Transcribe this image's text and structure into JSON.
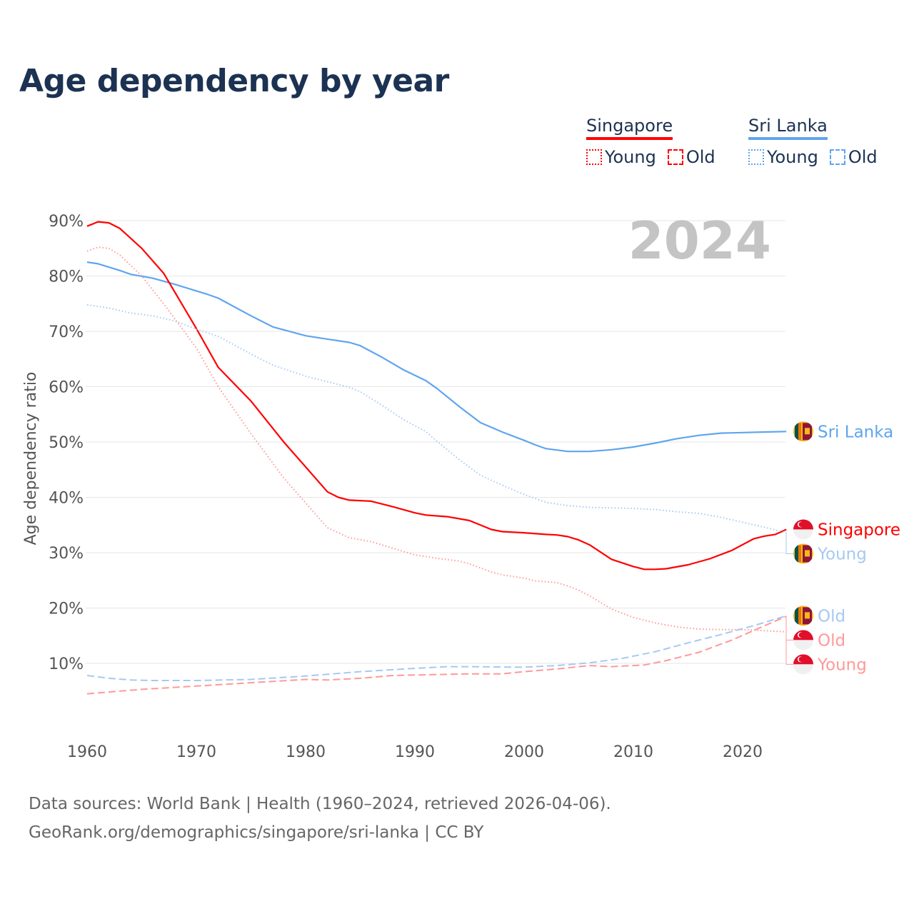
{
  "title": "Age dependency by year",
  "legend": [
    {
      "country": "Singapore",
      "color": "#ff0000",
      "light": "#ff9999",
      "young": "Young",
      "old": "Old"
    },
    {
      "country": "Sri Lanka",
      "color": "#5fa5ee",
      "light": "#a6c9f2",
      "young": "Young",
      "old": "Old"
    }
  ],
  "year_overlay": "2024",
  "footer": {
    "line1": "Data sources: World Bank | Health (1960–2024, retrieved 2026-04-06).",
    "line2": "GeoRank.org/demographics/singapore/sri-lanka | CC BY"
  },
  "chart_data": {
    "type": "line",
    "title": "Age dependency by year",
    "xlabel": "",
    "ylabel": "Age dependency ratio",
    "xlim": [
      1960,
      2024
    ],
    "ylim": [
      0,
      90
    ],
    "xticks": [
      "1960",
      "1970",
      "1980",
      "1990",
      "2000",
      "2010",
      "2020"
    ],
    "yticks": [
      "10%",
      "20%",
      "30%",
      "40%",
      "50%",
      "60%",
      "70%",
      "80%",
      "90%"
    ],
    "grid": true,
    "series": [
      {
        "name": "Sri Lanka",
        "end_label": "Sri Lanka",
        "flag": "sri-lanka",
        "style": "solid",
        "color": "#5fa5ee",
        "x": [
          1960,
          1961,
          1963,
          1964,
          1966,
          1968,
          1970,
          1971,
          1972,
          1975,
          1977,
          1980,
          1982,
          1984,
          1985,
          1987,
          1989,
          1991,
          1992,
          1994,
          1996,
          1998,
          2000,
          2001,
          2002,
          2004,
          2006,
          2008,
          2010,
          2012,
          2014,
          2016,
          2018,
          2020,
          2022,
          2024
        ],
        "y": [
          82.5,
          82.2,
          81,
          80.3,
          79.6,
          78.5,
          77.3,
          76.7,
          76,
          72.8,
          70.8,
          69.2,
          68.6,
          68,
          67.4,
          65.3,
          63,
          61.1,
          59.7,
          56.5,
          53.5,
          51.8,
          50.3,
          49.5,
          48.8,
          48.3,
          48.3,
          48.6,
          49.1,
          49.8,
          50.6,
          51.2,
          51.6,
          51.7,
          51.8,
          51.9
        ]
      },
      {
        "name": "Singapore",
        "end_label": "Singapore",
        "flag": "singapore",
        "style": "solid",
        "color": "#ff0000",
        "x": [
          1960,
          1961,
          1962,
          1963,
          1965,
          1967,
          1970,
          1972,
          1975,
          1978,
          1980,
          1982,
          1983,
          1984,
          1986,
          1988,
          1990,
          1991,
          1993,
          1995,
          1997,
          1998,
          2000,
          2002,
          2003,
          2004,
          2005,
          2006,
          2008,
          2010,
          2011,
          2012,
          2013,
          2015,
          2017,
          2019,
          2021,
          2022,
          2023,
          2024
        ],
        "y": [
          89,
          89.8,
          89.6,
          88.6,
          85,
          80.5,
          70.5,
          63.5,
          57.4,
          50,
          45.5,
          41,
          40,
          39.5,
          39.3,
          38.3,
          37.2,
          36.8,
          36.5,
          35.8,
          34.2,
          33.8,
          33.6,
          33.3,
          33.2,
          32.9,
          32.3,
          31.4,
          28.8,
          27.5,
          27,
          27,
          27.1,
          27.8,
          28.9,
          30.4,
          32.5,
          33,
          33.3,
          34.2
        ]
      },
      {
        "name": "Sri Lanka Young",
        "end_label": "Young",
        "flag": "sri-lanka",
        "style": "dotted",
        "color": "#a6c9f2",
        "x": [
          1960,
          1962,
          1964,
          1966,
          1968,
          1970,
          1972,
          1975,
          1977,
          1980,
          1982,
          1984,
          1985,
          1987,
          1989,
          1991,
          1992,
          1994,
          1996,
          1998,
          2000,
          2002,
          2004,
          2006,
          2010,
          2012,
          2014,
          2016,
          2018,
          2020,
          2022,
          2024
        ],
        "y": [
          74.8,
          74.2,
          73.3,
          72.8,
          71.9,
          70.4,
          69.1,
          65.9,
          63.9,
          61.9,
          60.9,
          59.9,
          59.1,
          56.6,
          54,
          51.9,
          50.2,
          46.9,
          44,
          42.2,
          40.5,
          39.1,
          38.5,
          38.2,
          38,
          37.8,
          37.4,
          37.1,
          36.4,
          35.5,
          34.6,
          33.6
        ]
      },
      {
        "name": "Sri Lanka Old",
        "end_label": "Old",
        "flag": "sri-lanka",
        "style": "dashed",
        "color": "#a6c9f2",
        "x": [
          1960,
          1962,
          1964,
          1966,
          1970,
          1975,
          1980,
          1985,
          1990,
          1993,
          1995,
          2000,
          2003,
          2006,
          2009,
          2012,
          2015,
          2018,
          2021,
          2024
        ],
        "y": [
          7.8,
          7.3,
          7,
          6.9,
          6.9,
          7.1,
          7.7,
          8.5,
          9.1,
          9.4,
          9.4,
          9.3,
          9.6,
          10.1,
          10.9,
          12.1,
          13.7,
          15.2,
          16.8,
          18.6
        ]
      },
      {
        "name": "Singapore Old",
        "end_label": "Old",
        "flag": "singapore",
        "style": "dashed",
        "color": "#ff9999",
        "x": [
          1960,
          1965,
          1970,
          1975,
          1980,
          1982,
          1985,
          1988,
          1990,
          1995,
          1998,
          2000,
          2003,
          2006,
          2008,
          2011,
          2013,
          2016,
          2019,
          2022,
          2024
        ],
        "y": [
          4.5,
          5.3,
          5.9,
          6.5,
          7.1,
          7,
          7.3,
          7.8,
          7.9,
          8.1,
          8.1,
          8.5,
          9,
          9.6,
          9.4,
          9.7,
          10.5,
          12,
          14.2,
          16.8,
          18.5
        ]
      },
      {
        "name": "Singapore Young",
        "end_label": "Young",
        "flag": "singapore",
        "style": "dotted",
        "color": "#ff9999",
        "x": [
          1960,
          1961,
          1962,
          1963,
          1965,
          1967,
          1970,
          1972,
          1975,
          1978,
          1980,
          1982,
          1984,
          1986,
          1988,
          1990,
          1992,
          1994,
          1995,
          1997,
          1998,
          2000,
          2001,
          2003,
          2004,
          2005,
          2006,
          2008,
          2010,
          2012,
          2014,
          2016,
          2018,
          2020,
          2022,
          2024
        ],
        "y": [
          84.5,
          85.2,
          85,
          83.8,
          80,
          75,
          67,
          60,
          51.5,
          43.5,
          39,
          34.5,
          32.7,
          32,
          30.8,
          29.6,
          29,
          28.5,
          28,
          26.5,
          26,
          25.4,
          24.9,
          24.6,
          24,
          23.2,
          22.2,
          19.8,
          18.3,
          17.3,
          16.6,
          16.2,
          16.1,
          16.1,
          15.9,
          15.7
        ]
      }
    ]
  }
}
